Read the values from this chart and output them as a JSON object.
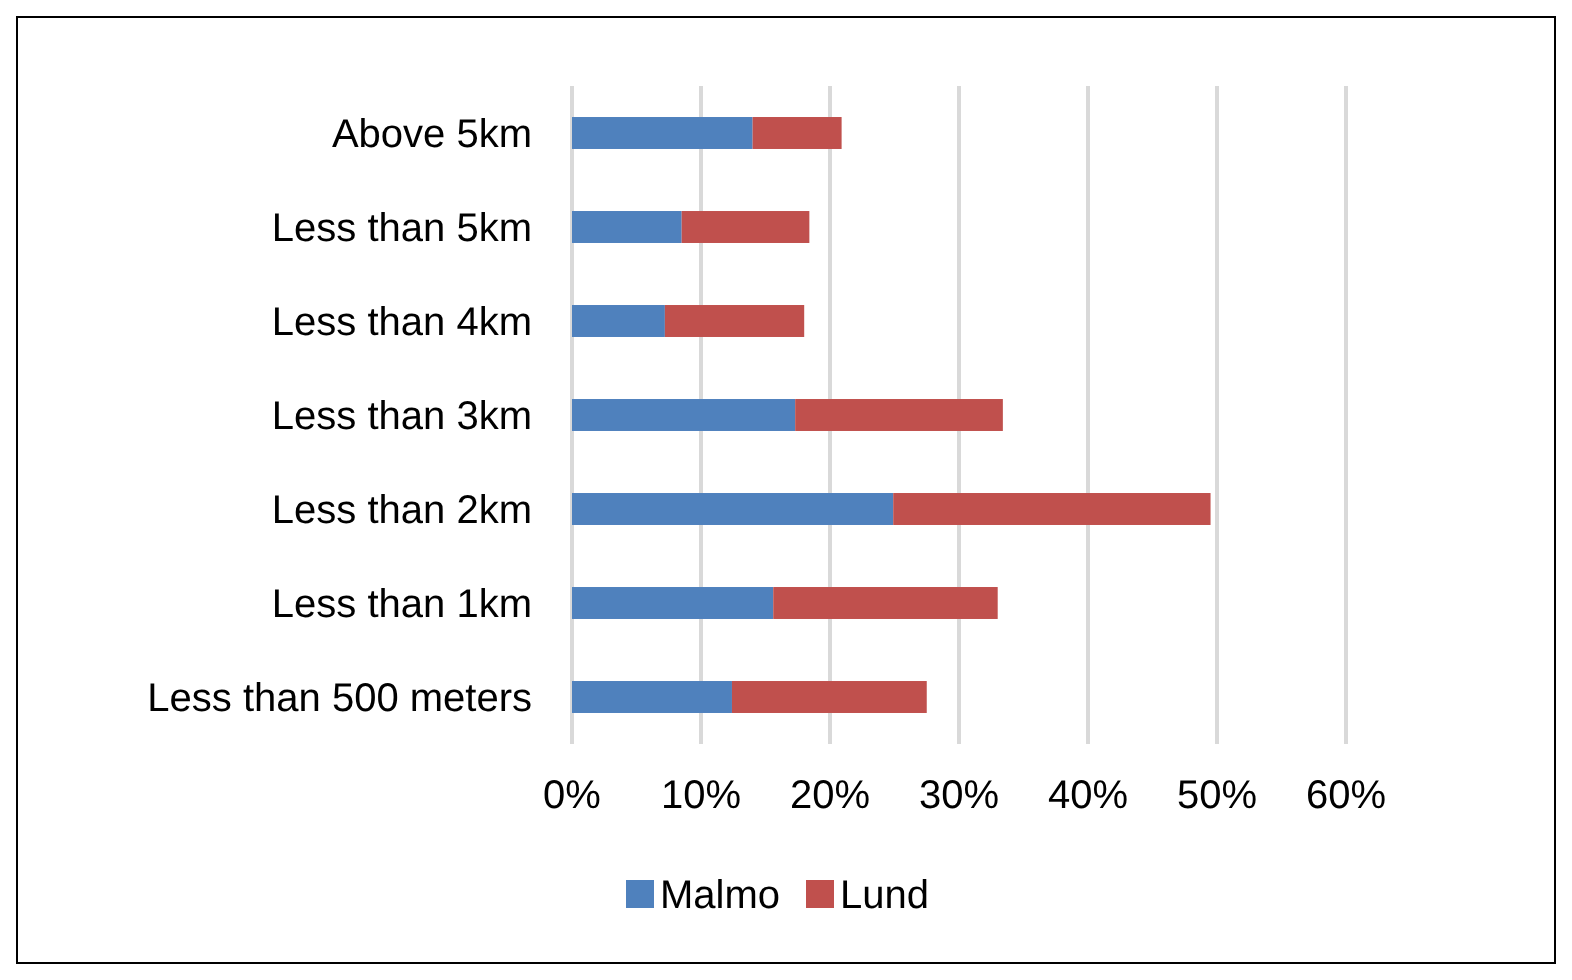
{
  "chart_data": {
    "type": "bar",
    "orientation": "horizontal",
    "stacked": true,
    "categories": [
      "Above 5km",
      "Less than 5km",
      "Less than 4km",
      "Less than 3km",
      "Less than 2km",
      "Less than 1km",
      "Less than 500 meters"
    ],
    "series": [
      {
        "name": "Malmo",
        "color": "#4f81bd",
        "values": [
          14.0,
          8.5,
          7.2,
          17.3,
          24.9,
          15.6,
          12.4
        ]
      },
      {
        "name": "Lund",
        "color": "#c0504d",
        "values": [
          6.9,
          9.9,
          10.8,
          16.1,
          24.6,
          17.4,
          15.1
        ]
      }
    ],
    "xlim": [
      0,
      60
    ],
    "xticks": [
      {
        "value": 0,
        "label": "0%"
      },
      {
        "value": 10,
        "label": "10%"
      },
      {
        "value": 20,
        "label": "20%"
      },
      {
        "value": 30,
        "label": "30%"
      },
      {
        "value": 40,
        "label": "40%"
      },
      {
        "value": 50,
        "label": "50%"
      },
      {
        "value": 60,
        "label": "60%"
      }
    ],
    "grid": "x",
    "legend": "bottom"
  }
}
